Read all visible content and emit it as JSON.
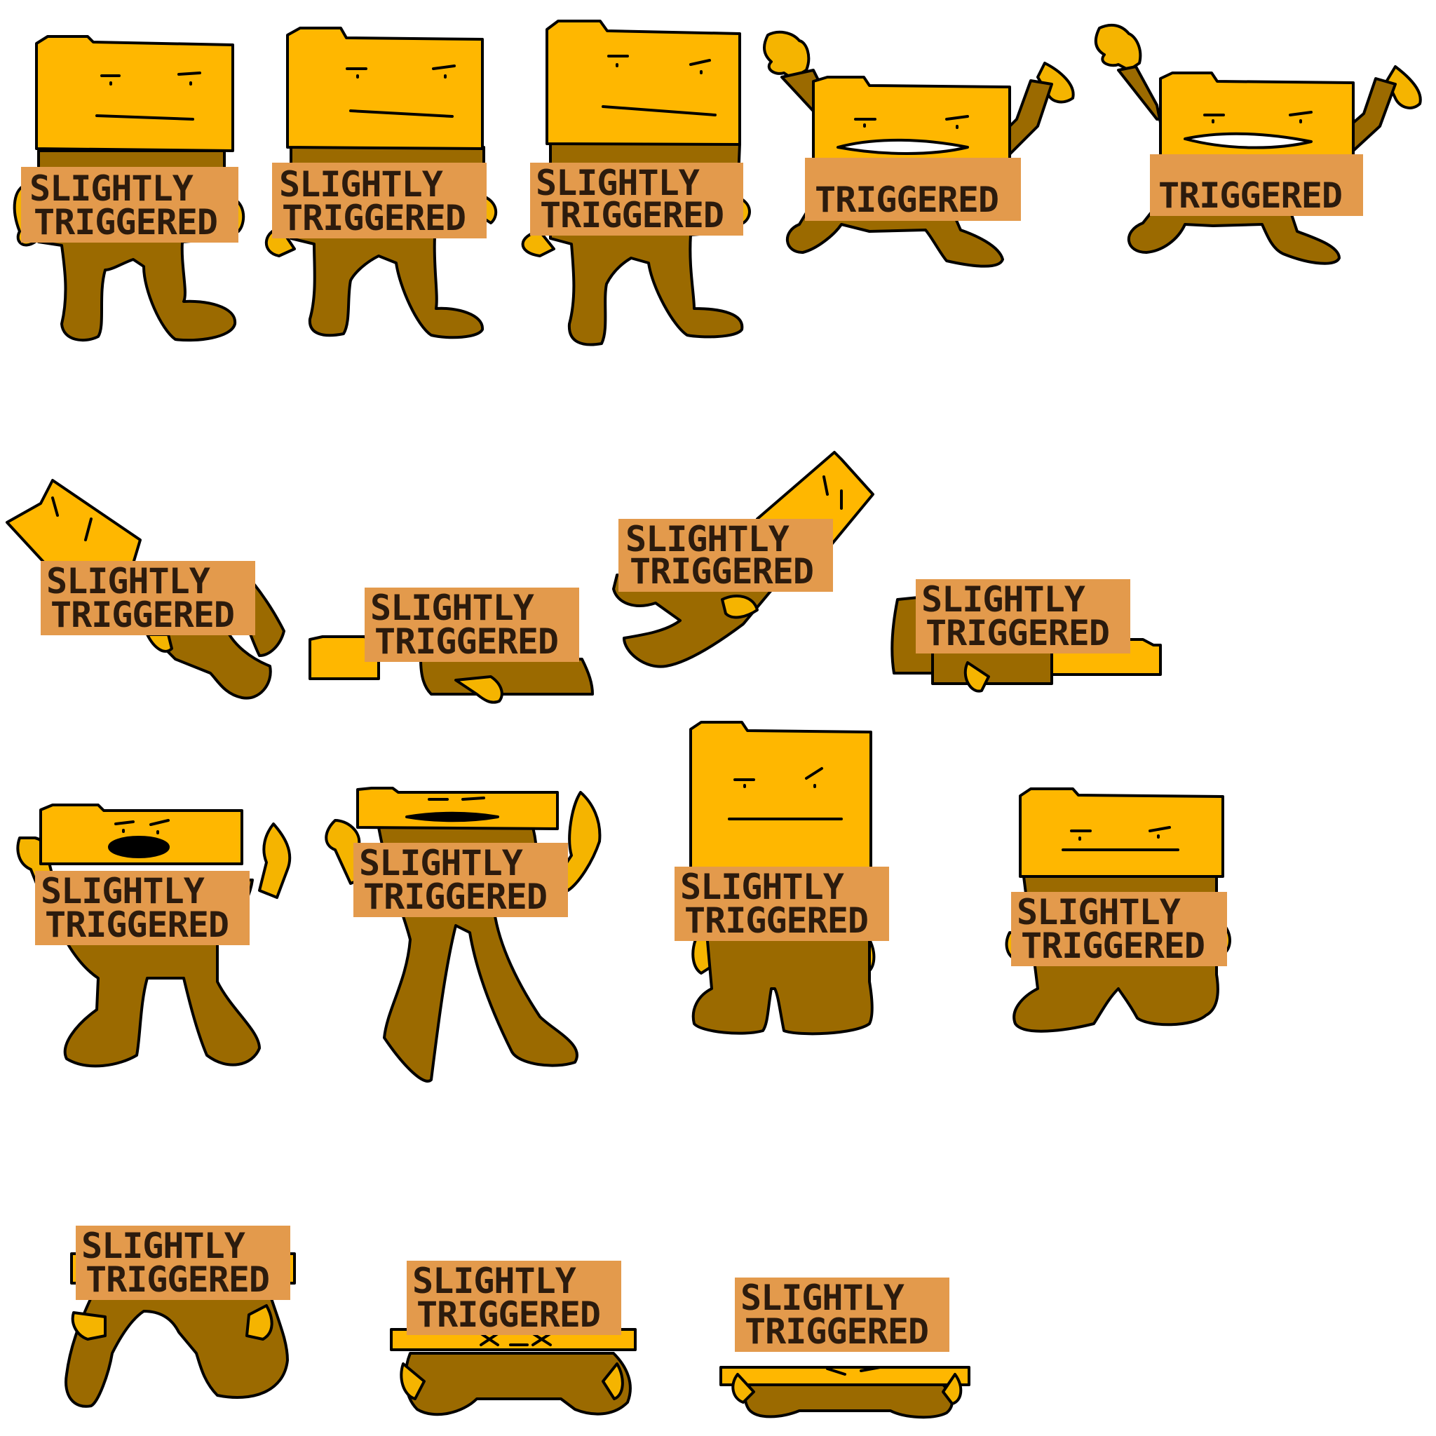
{
  "sheet": {
    "background": "#ffffff",
    "palette": {
      "head": "#ffb700",
      "body": "#9b6a00",
      "hand": "#f5b400",
      "sign": "#e39a4c",
      "sign_text": "#2c1b0d",
      "outline": "#000000"
    },
    "sign": {
      "line1": "SLIGHTLY",
      "line2": "TRIGGERED"
    },
    "frames": [
      {
        "id": 1,
        "pose": "standing-neutral"
      },
      {
        "id": 2,
        "pose": "standing-neutral"
      },
      {
        "id": 3,
        "pose": "standing-neutral"
      },
      {
        "id": 4,
        "pose": "arms-up-shouting"
      },
      {
        "id": 5,
        "pose": "arms-up-shouting"
      },
      {
        "id": 6,
        "pose": "falling-tilted"
      },
      {
        "id": 7,
        "pose": "lying-down"
      },
      {
        "id": 8,
        "pose": "getting-up"
      },
      {
        "id": 9,
        "pose": "lying-down"
      },
      {
        "id": 10,
        "pose": "arms-up-shout-squashed"
      },
      {
        "id": 11,
        "pose": "arms-up-flat-head"
      },
      {
        "id": 12,
        "pose": "standing-tall"
      },
      {
        "id": 13,
        "pose": "standing-wide"
      },
      {
        "id": 14,
        "pose": "crouch-sign-up"
      },
      {
        "id": 15,
        "pose": "crouch-head-low"
      },
      {
        "id": 16,
        "pose": "crouch-flattened"
      }
    ]
  }
}
